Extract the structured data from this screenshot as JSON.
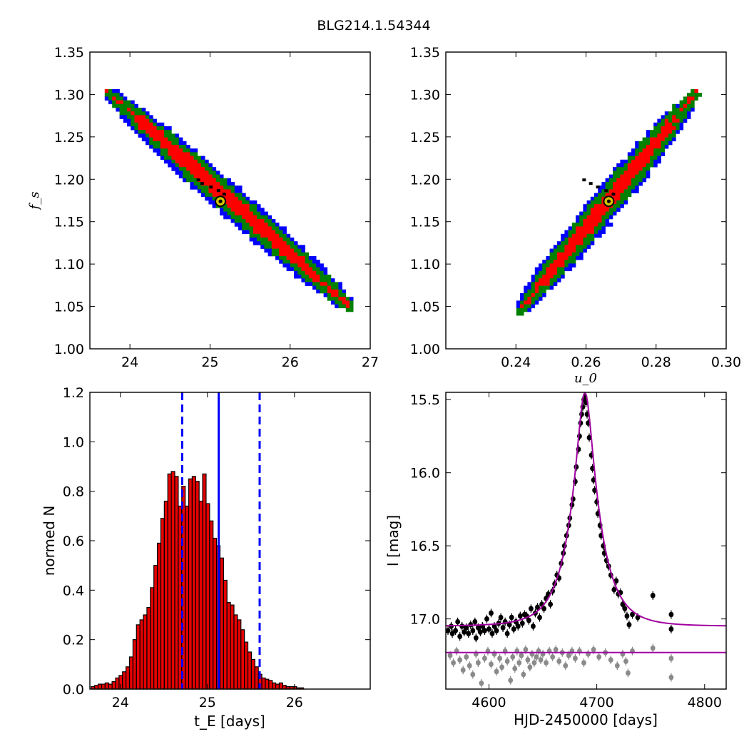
{
  "figure": {
    "title": "BLG214.1.54344"
  },
  "colors": {
    "sigma1": "#ff0000",
    "sigma2": "#008000",
    "sigma3": "#0000ff",
    "bestfit_fill": "#d4c400",
    "hist_bar": "#e60000",
    "vline": "#0000ff",
    "model_line": "#a0009f",
    "data_source": "#000000",
    "residual": "#8a8a8a"
  },
  "chart_data": [
    {
      "id": "contour-tE-fs",
      "type": "heatmap",
      "xlabel": "",
      "ylabel": "f_s",
      "xlim": [
        23.5,
        27.0
      ],
      "ylim": [
        1.0,
        1.35
      ],
      "xticks": [
        "24",
        "25",
        "26",
        "27"
      ],
      "yticks": [
        "1.00",
        "1.05",
        "1.10",
        "1.15",
        "1.20",
        "1.25",
        "1.30",
        "1.35"
      ],
      "levels": [
        "1 sigma (red)",
        "2 sigma (green)",
        "3 sigma (blue)"
      ],
      "ridge": [
        [
          23.7,
          1.305
        ],
        [
          26.8,
          1.045
        ]
      ],
      "best_fit": {
        "x": 25.13,
        "y": 1.174
      }
    },
    {
      "id": "contour-u0-fs",
      "type": "heatmap",
      "xlabel": "u_0",
      "ylabel": "",
      "xlim": [
        0.22,
        0.3
      ],
      "ylim": [
        1.0,
        1.35
      ],
      "xticks": [
        "0.24",
        "0.26",
        "0.28",
        "0.30"
      ],
      "yticks": [
        "1.00",
        "1.05",
        "1.10",
        "1.15",
        "1.20",
        "1.25",
        "1.30",
        "1.35"
      ],
      "levels": [
        "1 sigma (red)",
        "2 sigma (green)",
        "3 sigma (blue)"
      ],
      "ridge": [
        [
          0.2405,
          1.042
        ],
        [
          0.292,
          1.305
        ]
      ],
      "best_fit": {
        "x": 0.2665,
        "y": 1.174
      }
    },
    {
      "id": "histogram-tE",
      "type": "bar",
      "xlabel": "t_E [days]",
      "ylabel": "normed N",
      "xlim": [
        23.65,
        26.87
      ],
      "ylim": [
        0.0,
        1.2
      ],
      "xticks": [
        "24",
        "25",
        "26"
      ],
      "yticks": [
        "0.0",
        "0.2",
        "0.4",
        "0.6",
        "0.8",
        "1.0",
        "1.2"
      ],
      "bin_start": 23.665,
      "bin_width": 0.04,
      "values": [
        0.01,
        0.015,
        0.02,
        0.02,
        0.025,
        0.02,
        0.03,
        0.045,
        0.055,
        0.07,
        0.09,
        0.13,
        0.2,
        0.26,
        0.28,
        0.3,
        0.33,
        0.41,
        0.5,
        0.59,
        0.69,
        0.76,
        0.87,
        0.88,
        0.86,
        0.74,
        0.82,
        0.74,
        0.85,
        0.86,
        0.84,
        0.76,
        0.87,
        0.75,
        0.68,
        0.61,
        0.58,
        0.53,
        0.44,
        0.35,
        0.34,
        0.3,
        0.28,
        0.24,
        0.19,
        0.15,
        0.12,
        0.09,
        0.06,
        0.045,
        0.04,
        0.035,
        0.025,
        0.02,
        0.025,
        0.015,
        0.01,
        0.01,
        0.01,
        0.005,
        0.005
      ],
      "median": 25.13,
      "lower": 24.71,
      "upper": 25.6
    },
    {
      "id": "lightcurve",
      "type": "scatter",
      "xlabel": "HJD-2450000 [days]",
      "ylabel": "I [mag]",
      "xlim": [
        4560,
        4820
      ],
      "ylim": [
        17.48,
        15.45
      ],
      "xticks": [
        "4600",
        "4700",
        "4800"
      ],
      "yticks": [
        "15.5",
        "16.0",
        "16.5",
        "17.0"
      ],
      "model": {
        "t0": 4689,
        "u0": 0.266,
        "tE": 25.13,
        "base_mag": 17.05,
        "fs": 1.174
      },
      "residual_line": 17.23,
      "data": [
        [
          4562,
          17.08
        ],
        [
          4565,
          17.05
        ],
        [
          4566,
          17.1
        ],
        [
          4569,
          17.08
        ],
        [
          4571,
          17.02
        ],
        [
          4573,
          17.12
        ],
        [
          4575,
          17.05
        ],
        [
          4577,
          17.09
        ],
        [
          4579,
          17.06
        ],
        [
          4581,
          17.1
        ],
        [
          4583,
          17.04
        ],
        [
          4585,
          17.08
        ],
        [
          4587,
          17.02
        ],
        [
          4588,
          17.13
        ],
        [
          4590,
          17.06
        ],
        [
          4592,
          17.09
        ],
        [
          4594,
          17.05
        ],
        [
          4596,
          17.08
        ],
        [
          4598,
          17.0
        ],
        [
          4600,
          17.07
        ],
        [
          4602,
          16.96
        ],
        [
          4603,
          17.1
        ],
        [
          4605,
          17.05
        ],
        [
          4607,
          17.08
        ],
        [
          4609,
          17.03
        ],
        [
          4611,
          16.99
        ],
        [
          4613,
          17.06
        ],
        [
          4615,
          17.02
        ],
        [
          4617,
          17.1
        ],
        [
          4619,
          17.04
        ],
        [
          4621,
          16.99
        ],
        [
          4623,
          17.07
        ],
        [
          4625,
          17.02
        ],
        [
          4627,
          17.05
        ],
        [
          4629,
          16.98
        ],
        [
          4631,
          17.03
        ],
        [
          4633,
          16.97
        ],
        [
          4635,
          16.98
        ],
        [
          4637,
          17.01
        ],
        [
          4639,
          16.93
        ],
        [
          4641,
          17.05
        ],
        [
          4643,
          16.96
        ],
        [
          4645,
          16.92
        ],
        [
          4647,
          16.99
        ],
        [
          4649,
          16.9
        ],
        [
          4651,
          16.93
        ],
        [
          4653,
          16.86
        ],
        [
          4655,
          16.83
        ],
        [
          4657,
          16.9
        ],
        [
          4659,
          16.81
        ],
        [
          4661,
          16.76
        ],
        [
          4663,
          16.7
        ],
        [
          4665,
          16.72
        ],
        [
          4667,
          16.62
        ],
        [
          4669,
          16.55
        ],
        [
          4670,
          16.5
        ],
        [
          4672,
          16.43
        ],
        [
          4674,
          16.36
        ],
        [
          4675,
          16.31
        ],
        [
          4677,
          16.22
        ],
        [
          4678,
          16.18
        ],
        [
          4680,
          16.06
        ],
        [
          4681,
          15.96
        ],
        [
          4683,
          15.84
        ],
        [
          4684,
          15.75
        ],
        [
          4685,
          15.66
        ],
        [
          4686,
          15.6
        ],
        [
          4687,
          15.55
        ],
        [
          4688,
          15.5
        ],
        [
          4689,
          15.48
        ],
        [
          4690,
          15.52
        ],
        [
          4691,
          15.6
        ],
        [
          4692,
          15.66
        ],
        [
          4693,
          15.76
        ],
        [
          4695,
          15.88
        ],
        [
          4696,
          15.97
        ],
        [
          4697,
          16.05
        ],
        [
          4698,
          16.12
        ],
        [
          4700,
          16.2
        ],
        [
          4701,
          16.28
        ],
        [
          4703,
          16.36
        ],
        [
          4704,
          16.43
        ],
        [
          4706,
          16.5
        ],
        [
          4707,
          16.55
        ],
        [
          4709,
          16.6
        ],
        [
          4711,
          16.64
        ],
        [
          4713,
          16.7
        ],
        [
          4716,
          16.8
        ],
        [
          4718,
          16.74
        ],
        [
          4720,
          16.83
        ],
        [
          4722,
          16.82
        ],
        [
          4724,
          16.9
        ],
        [
          4726,
          16.93
        ],
        [
          4728,
          16.98
        ],
        [
          4730,
          17.04
        ],
        [
          4733,
          16.97
        ],
        [
          4738,
          16.99
        ],
        [
          4752,
          16.84
        ],
        [
          4769,
          16.97
        ],
        [
          4769,
          17.07
        ]
      ],
      "residuals": [
        [
          4564,
          17.25
        ],
        [
          4567,
          17.3
        ],
        [
          4570,
          17.22
        ],
        [
          4573,
          17.28
        ],
        [
          4576,
          17.35
        ],
        [
          4579,
          17.26
        ],
        [
          4582,
          17.32
        ],
        [
          4585,
          17.38
        ],
        [
          4588,
          17.24
        ],
        [
          4590,
          17.3
        ],
        [
          4593,
          17.44
        ],
        [
          4596,
          17.27
        ],
        [
          4599,
          17.22
        ],
        [
          4602,
          17.31
        ],
        [
          4605,
          17.24
        ],
        [
          4607,
          17.36
        ],
        [
          4610,
          17.27
        ],
        [
          4612,
          17.33
        ],
        [
          4615,
          17.22
        ],
        [
          4617,
          17.29
        ],
        [
          4620,
          17.42
        ],
        [
          4622,
          17.26
        ],
        [
          4624,
          17.34
        ],
        [
          4626,
          17.22
        ],
        [
          4628,
          17.3
        ],
        [
          4630,
          17.25
        ],
        [
          4632,
          17.38
        ],
        [
          4634,
          17.21
        ],
        [
          4636,
          17.28
        ],
        [
          4638,
          17.33
        ],
        [
          4640,
          17.24
        ],
        [
          4642,
          17.3
        ],
        [
          4644,
          17.26
        ],
        [
          4646,
          17.22
        ],
        [
          4648,
          17.28
        ],
        [
          4650,
          17.24
        ],
        [
          4653,
          17.3
        ],
        [
          4656,
          17.22
        ],
        [
          4659,
          17.26
        ],
        [
          4662,
          17.21
        ],
        [
          4665,
          17.29
        ],
        [
          4668,
          17.23
        ],
        [
          4671,
          17.32
        ],
        [
          4674,
          17.25
        ],
        [
          4677,
          17.22
        ],
        [
          4680,
          17.27
        ],
        [
          4684,
          17.22
        ],
        [
          4688,
          17.3
        ],
        [
          4692,
          17.24
        ],
        [
          4697,
          17.21
        ],
        [
          4702,
          17.26
        ],
        [
          4708,
          17.23
        ],
        [
          4713,
          17.28
        ],
        [
          4719,
          17.32
        ],
        [
          4724,
          17.24
        ],
        [
          4727,
          17.29
        ],
        [
          4729,
          17.37
        ],
        [
          4733,
          17.22
        ],
        [
          4752,
          17.2
        ],
        [
          4769,
          17.27
        ],
        [
          4769,
          17.4
        ]
      ]
    }
  ]
}
